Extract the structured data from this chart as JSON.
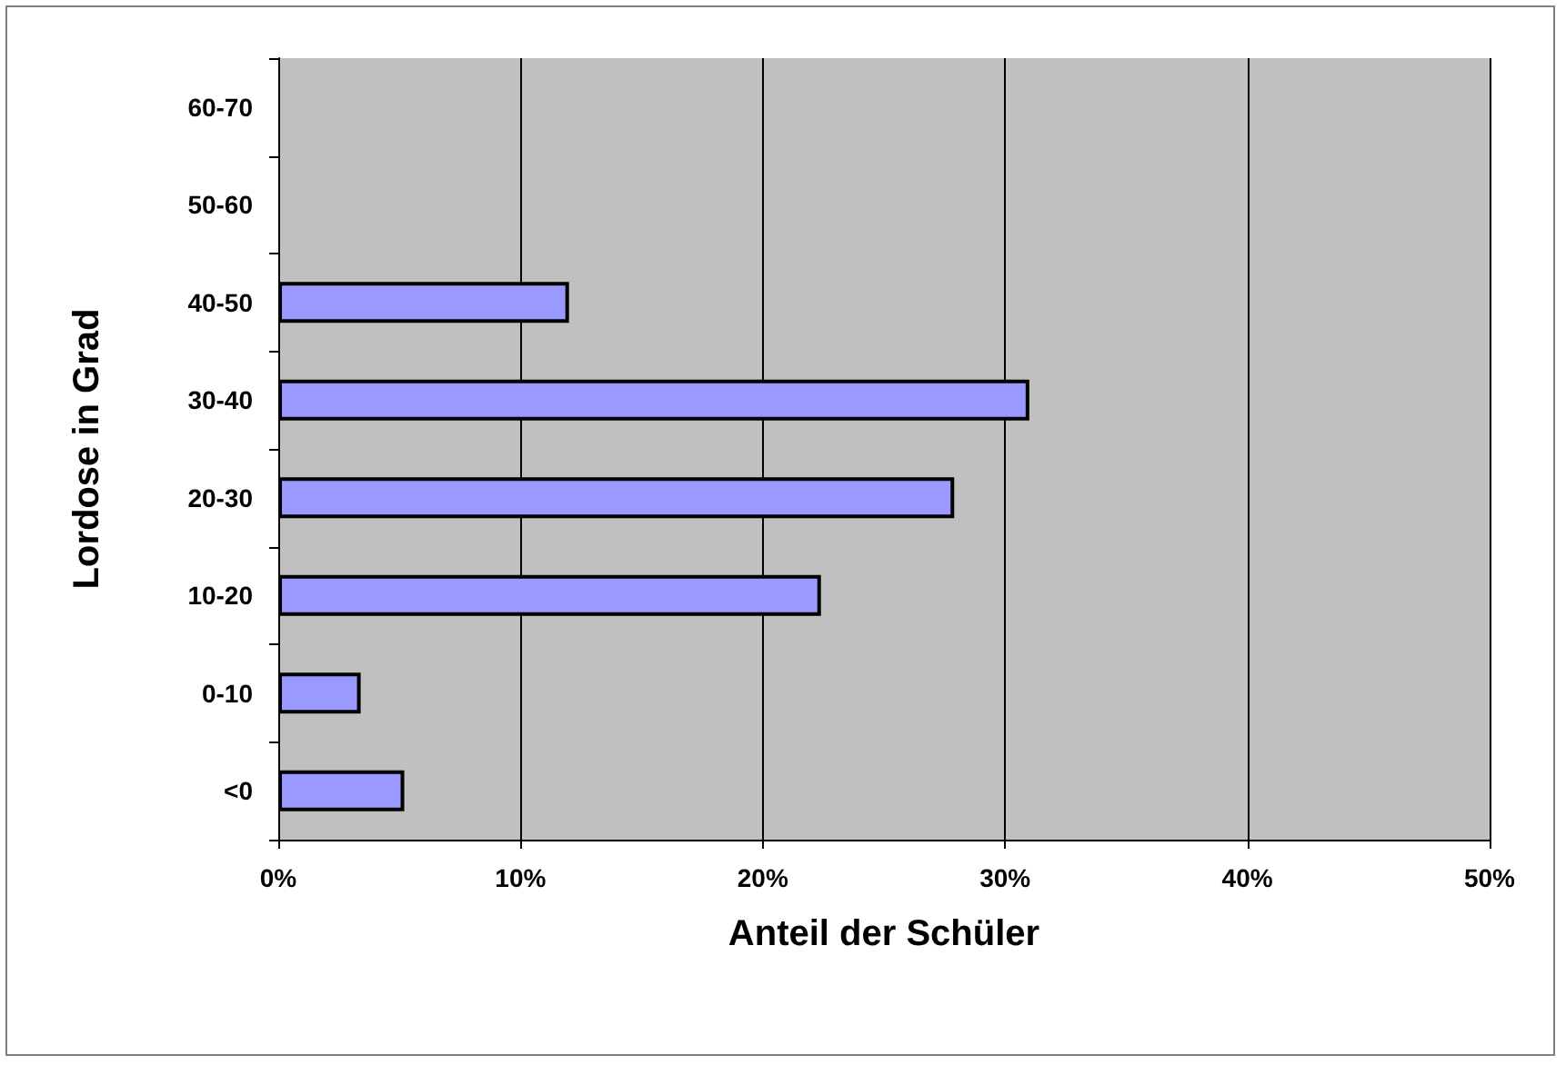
{
  "chart_data": {
    "type": "bar",
    "orientation": "horizontal",
    "xlabel": "Anteil der Schüler",
    "ylabel": "Lordose in Grad",
    "categories": [
      "60-70",
      "50-60",
      "40-50",
      "30-40",
      "20-30",
      "10-20",
      "0-10",
      "<0"
    ],
    "values": [
      null,
      null,
      12.0,
      31.0,
      27.9,
      22.4,
      3.4,
      5.2
    ],
    "color": "#9999ff",
    "xlim": [
      0,
      50
    ],
    "xticks": [
      {
        "value": 0,
        "label": "0%"
      },
      {
        "value": 10,
        "label": "10%"
      },
      {
        "value": 20,
        "label": "20%"
      },
      {
        "value": 30,
        "label": "30%"
      },
      {
        "value": 40,
        "label": "40%"
      },
      {
        "value": 50,
        "label": "50%"
      }
    ],
    "grid": "x"
  }
}
